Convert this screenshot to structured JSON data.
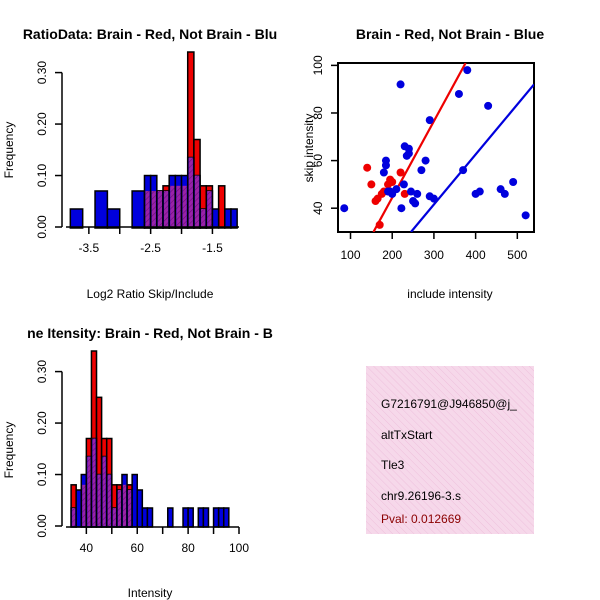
{
  "chart_data": [
    {
      "type": "histogram",
      "title": "RatioData: Brain - Red, Not Brain - Blu",
      "xlabel": "Log2 Ratio Skip/Include",
      "ylabel": "Frequency",
      "xlim": [
        -3.87,
        -1.07
      ],
      "ylim": [
        0,
        0.34
      ],
      "xticks": [
        -3.5,
        -2.5,
        -1.5
      ],
      "xtick_labels": [
        "-3.5",
        "-2.5",
        "-1.5"
      ],
      "yticks": [
        0,
        0.1,
        0.2,
        0.3
      ],
      "ytick_labels": [
        "0.00",
        "0.10",
        "0.20",
        "0.30"
      ],
      "bin_edges": [
        -3.8,
        -3.6,
        -3.4,
        -3.2,
        -3.0,
        -2.8,
        -2.6,
        -2.5,
        -2.4,
        -2.3,
        -2.2,
        -2.1,
        -2.0,
        -1.9,
        -1.8,
        -1.7,
        -1.6,
        -1.5,
        -1.4,
        -1.3,
        -1.2,
        -1.1
      ],
      "series": [
        {
          "name": "Brain",
          "color": "#ee0000",
          "values": [
            0,
            0,
            0,
            0,
            0,
            0,
            0.07,
            0.07,
            0.07,
            0.08,
            0.08,
            0.08,
            0.08,
            0.34,
            0.17,
            0.08,
            0.08,
            0,
            0.08,
            0,
            0
          ]
        },
        {
          "name": "Not Brain",
          "color": "#0000dd",
          "values": [
            0.035,
            0,
            0.07,
            0.035,
            0,
            0.07,
            0.1,
            0.1,
            0.07,
            0.07,
            0.1,
            0.1,
            0.1,
            0.135,
            0.1,
            0.035,
            0.07,
            0.035,
            0,
            0.035,
            0.035
          ]
        }
      ]
    },
    {
      "type": "scatter",
      "title": "Brain - Red, Not Brain - Blue",
      "xlabel": "include intensity",
      "ylabel": "skip intensity",
      "xlim": [
        70,
        540
      ],
      "ylim": [
        30,
        101
      ],
      "xticks": [
        100,
        200,
        300,
        400,
        500
      ],
      "xtick_labels": [
        "100",
        "200",
        "300",
        "400",
        "500"
      ],
      "yticks": [
        40,
        60,
        80,
        100
      ],
      "ytick_labels": [
        "40",
        "60",
        "80",
        "100"
      ],
      "series": [
        {
          "name": "Brain",
          "color": "#ee0000",
          "points": [
            [
              140,
              57
            ],
            [
              150,
              50
            ],
            [
              160,
              43
            ],
            [
              165,
              44
            ],
            [
              170,
              33
            ],
            [
              175,
              46
            ],
            [
              180,
              47
            ],
            [
              190,
              50
            ],
            [
              195,
              52
            ],
            [
              200,
              51
            ],
            [
              220,
              55
            ],
            [
              230,
              46
            ]
          ],
          "fit": {
            "x": [
              155,
              376
            ],
            "y": [
              30,
              101
            ]
          }
        },
        {
          "name": "Not Brain",
          "color": "#0000dd",
          "points": [
            [
              85,
              40
            ],
            [
              180,
              55
            ],
            [
              185,
              58
            ],
            [
              185,
              60
            ],
            [
              190,
              47
            ],
            [
              195,
              47
            ],
            [
              200,
              46
            ],
            [
              210,
              48
            ],
            [
              220,
              92
            ],
            [
              222,
              40
            ],
            [
              228,
              50
            ],
            [
              230,
              66
            ],
            [
              235,
              62
            ],
            [
              240,
              65
            ],
            [
              240,
              63
            ],
            [
              245,
              47
            ],
            [
              250,
              43
            ],
            [
              255,
              42
            ],
            [
              260,
              46
            ],
            [
              270,
              56
            ],
            [
              280,
              60
            ],
            [
              290,
              77
            ],
            [
              290,
              45
            ],
            [
              300,
              44
            ],
            [
              360,
              88
            ],
            [
              370,
              56
            ],
            [
              380,
              98
            ],
            [
              400,
              46
            ],
            [
              410,
              47
            ],
            [
              430,
              83
            ],
            [
              460,
              48
            ],
            [
              470,
              46
            ],
            [
              490,
              51
            ],
            [
              520,
              37
            ]
          ],
          "fit": {
            "x": [
              245,
              540
            ],
            "y": [
              30,
              92
            ]
          }
        }
      ]
    },
    {
      "type": "histogram",
      "title": "ne Itensity: Brain - Red, Not Brain - B",
      "xlabel": "Intensity",
      "ylabel": "Frequency",
      "xlim": [
        32,
        100
      ],
      "ylim": [
        0,
        0.34
      ],
      "xticks": [
        40,
        60,
        80,
        100
      ],
      "xtick_labels": [
        "40",
        "60",
        "80",
        "100"
      ],
      "yticks": [
        0,
        0.1,
        0.2,
        0.3
      ],
      "ytick_labels": [
        "0.00",
        "0.10",
        "0.20",
        "0.30"
      ],
      "bin_edges": [
        34,
        36,
        38,
        40,
        42,
        44,
        46,
        48,
        50,
        52,
        54,
        56,
        58,
        60,
        62,
        64,
        66,
        68,
        70,
        72,
        74,
        76,
        78,
        80,
        82,
        84,
        86,
        88,
        90,
        92,
        94,
        96
      ],
      "series": [
        {
          "name": "Brain",
          "color": "#ee0000",
          "values": [
            0.08,
            0,
            0.08,
            0.17,
            0.34,
            0.25,
            0.17,
            0.17,
            0.08,
            0.08,
            0.08,
            0.08,
            0,
            0,
            0,
            0,
            0,
            0,
            0,
            0,
            0,
            0,
            0,
            0,
            0,
            0,
            0,
            0,
            0,
            0,
            0
          ]
        },
        {
          "name": "Not Brain",
          "color": "#0000dd",
          "values": [
            0.035,
            0.07,
            0.1,
            0.135,
            0.17,
            0.1,
            0.135,
            0.1,
            0.035,
            0.07,
            0.1,
            0.07,
            0.1,
            0.07,
            0.035,
            0.035,
            0,
            0,
            0,
            0.035,
            0,
            0,
            0.035,
            0.035,
            0,
            0.035,
            0.035,
            0,
            0.035,
            0.035,
            0.035
          ]
        }
      ]
    }
  ],
  "info_panel": {
    "id": "G7216791@J946850@j_",
    "type": "altTxStart",
    "gene": "Tle3",
    "location": "chr9.26196-3.s",
    "pval": "Pval: 0.012669"
  }
}
